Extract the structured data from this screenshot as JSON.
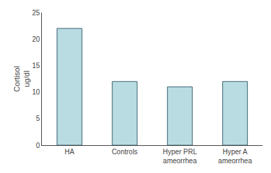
{
  "chart_data": {
    "type": "bar",
    "categories": [
      "HA",
      "Controls",
      "Hyper PRL\nameorrhea",
      "Hyper A\nameorrhea"
    ],
    "values": [
      22.0,
      12.0,
      11.0,
      12.0
    ],
    "color": "#b8dce2",
    "ylabel": "Cortisol\nug/dl",
    "ylim": [
      0,
      25
    ],
    "yticks": [
      0,
      5,
      10,
      15,
      20,
      25
    ],
    "grid": false
  }
}
